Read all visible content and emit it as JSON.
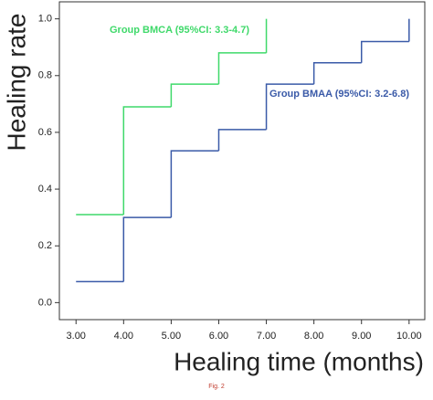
{
  "chart_data": {
    "type": "step",
    "y_label": "Healing rate",
    "x_label": "Healing time (months)",
    "figure_label": "Fig. 2",
    "annotations": [
      "Group BMCA (95%CI: 3.3-4.7)",
      "Group BMAA (95%CI: 3.2-6.8)"
    ],
    "series": [
      {
        "name": "Group BMCA",
        "color": "#3fd96a",
        "x": [
          3,
          4,
          5,
          6,
          7
        ],
        "values": [
          0.31,
          0.69,
          0.77,
          0.88,
          1.0
        ]
      },
      {
        "name": "Group BMAA",
        "color": "#3a5aa8",
        "x": [
          3,
          4,
          5,
          6,
          7,
          8,
          9,
          10
        ],
        "values": [
          0.074,
          0.3,
          0.535,
          0.61,
          0.77,
          0.845,
          0.92,
          1.0
        ]
      }
    ],
    "xlim": [
      2.65,
      10.33
    ],
    "ylim": [
      -0.06,
      1.06
    ],
    "xticks": [
      {
        "value": 3,
        "label": "3.00"
      },
      {
        "value": 4,
        "label": "4.00"
      },
      {
        "value": 5,
        "label": "5.00"
      },
      {
        "value": 6,
        "label": "6.00"
      },
      {
        "value": 7,
        "label": "7.00"
      },
      {
        "value": 8,
        "label": "8.00"
      },
      {
        "value": 9,
        "label": "9.00"
      },
      {
        "value": 10,
        "label": "10.00"
      }
    ],
    "yticks": [
      {
        "value": 0,
        "label": "0.0"
      },
      0.2,
      0.4,
      0.6,
      0.8,
      {
        "value": 1,
        "label": "1.0"
      }
    ],
    "grid": false
  }
}
